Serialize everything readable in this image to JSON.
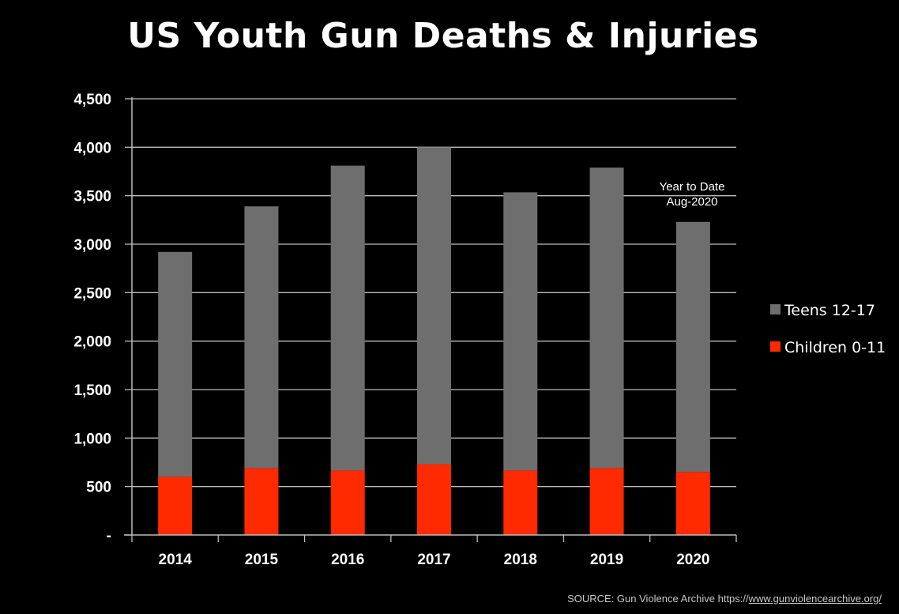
{
  "chart_data": {
    "type": "bar",
    "stacked": true,
    "title": "US Youth Gun Deaths & Injuries",
    "categories": [
      "2014",
      "2015",
      "2016",
      "2017",
      "2018",
      "2019",
      "2020"
    ],
    "series": [
      {
        "name": "Children 0-11",
        "color": "#ff2a00",
        "values": [
          600,
          690,
          665,
          730,
          665,
          690,
          650
        ]
      },
      {
        "name": "Teens 12-17",
        "color": "#6e6e6e",
        "values": [
          2320,
          2700,
          3145,
          3270,
          2870,
          3100,
          2580
        ]
      }
    ],
    "ylim": [
      0,
      4500
    ],
    "yticks": [
      0,
      500,
      1000,
      1500,
      2000,
      2500,
      3000,
      3500,
      4000,
      4500
    ],
    "ytick_labels": [
      "-",
      "500",
      "1,000",
      "1,500",
      "2,000",
      "2,500",
      "3,000",
      "3,500",
      "4,000",
      "4,500"
    ],
    "grid": true,
    "legend_position": "right",
    "legend_order": [
      "Teens 12-17",
      "Children 0-11"
    ],
    "annotation": {
      "category": "2020",
      "lines": [
        "Year to Date",
        "Aug-2020"
      ]
    },
    "source": {
      "prefix": "SOURCE: Gun Violence Archive https://",
      "link": "www.gunviolencearchive.org/"
    }
  }
}
